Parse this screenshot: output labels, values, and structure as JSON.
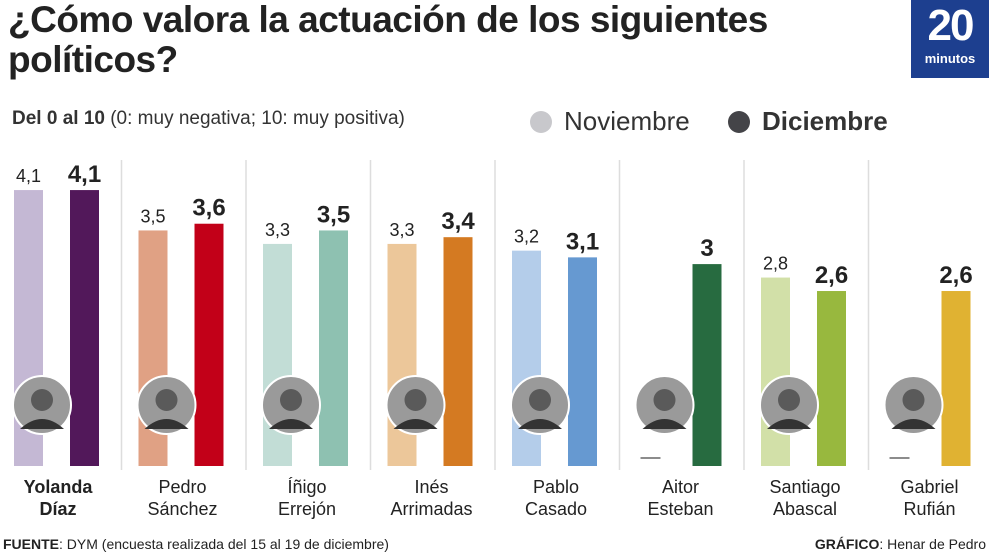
{
  "title": "¿Cómo valora la actuación de los siguientes políticos?",
  "logo": {
    "number": "20",
    "word": "minutos",
    "color": "#1d3f8f"
  },
  "subtitle": {
    "bold": "Del 0 al 10",
    "rest": " (0: muy negativa; 10: muy positiva)"
  },
  "footer": {
    "source_label": "FUENTE",
    "source": ": DYM (encuesta realizada del 15 al 19 de diciembre)",
    "credit_label": "GRÁFICO",
    "credit": ": Henar de Pedro"
  },
  "chart_data": {
    "type": "bar",
    "title": "¿Cómo valora la actuación de los siguientes políticos?",
    "ylim": [
      0,
      10
    ],
    "grid": false,
    "legend_placement": "top",
    "categories": [
      "Yolanda Díaz",
      "Pedro Sánchez",
      "Íñigo Errejón",
      "Inés Arrimadas",
      "Pablo Casado",
      "Aitor Esteban",
      "Santiago Abascal",
      "Gabriel Rufián"
    ],
    "name_lines": [
      [
        "Yolanda",
        "Díaz"
      ],
      [
        "Pedro",
        "Sánchez"
      ],
      [
        "Íñigo",
        "Errejón"
      ],
      [
        "Inés",
        "Arrimadas"
      ],
      [
        "Pablo",
        "Casado"
      ],
      [
        "Aitor",
        "Esteban"
      ],
      [
        "Santiago",
        "Abascal"
      ],
      [
        "Gabriel",
        "Rufián"
      ]
    ],
    "series": [
      {
        "name": "Noviembre",
        "values": [
          4.1,
          3.5,
          3.3,
          3.3,
          3.2,
          null,
          2.8,
          null
        ],
        "labels": [
          "4,1",
          "3,5",
          "3,3",
          "3,3",
          "3,2",
          "",
          "2,8",
          ""
        ],
        "legend_color": "#c8c8cc",
        "colors": [
          "#c4b8d4",
          "#e0a184",
          "#c2ddd6",
          "#ecc79a",
          "#b4cdea",
          "#9fc9a8",
          "#d2e0a8",
          "#efd68c"
        ]
      },
      {
        "name": "Diciembre",
        "values": [
          4.1,
          3.6,
          3.5,
          3.4,
          3.1,
          3.0,
          2.6,
          2.6
        ],
        "labels": [
          "4,1",
          "3,6",
          "3,5",
          "3,4",
          "3,1",
          "3",
          "2,6",
          "2,6"
        ],
        "legend_color": "#444448",
        "colors": [
          "#52185a",
          "#c20018",
          "#8ec1b1",
          "#d47a22",
          "#6699d1",
          "#276b40",
          "#98b83e",
          "#e0b232"
        ]
      }
    ]
  }
}
